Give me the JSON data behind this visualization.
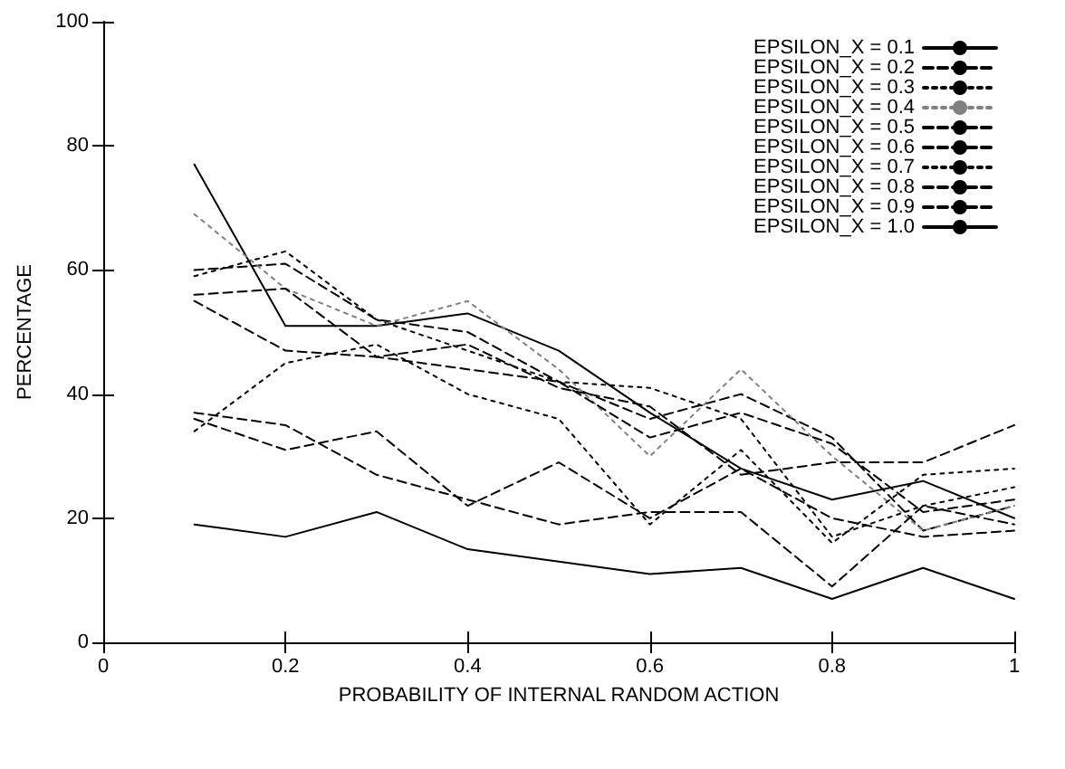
{
  "chart_data": {
    "type": "line",
    "xlabel": "PROBABILITY OF INTERNAL RANDOM ACTION",
    "ylabel": "PERCENTAGE",
    "x": [
      0.1,
      0.2,
      0.3,
      0.4,
      0.5,
      0.6,
      0.7,
      0.8,
      0.9,
      1.0
    ],
    "xlim": [
      0,
      1
    ],
    "xticks": [
      0,
      0.2,
      0.4,
      0.6,
      0.8,
      1
    ],
    "ylim": [
      0,
      100
    ],
    "yticks": [
      0,
      20,
      40,
      60,
      80,
      100
    ],
    "grid": false,
    "legend": "top right",
    "marker": "none",
    "series": [
      {
        "name": "EPSILON_X = 0.1",
        "color": "#000000",
        "line_style": "solid",
        "values": [
          77,
          51,
          51,
          53,
          47,
          37,
          28,
          23,
          26,
          20
        ]
      },
      {
        "name": "EPSILON_X = 0.2",
        "color": "#000000",
        "line_style": "dashed",
        "values": [
          60,
          61,
          52,
          50,
          42,
          36,
          40,
          33,
          18,
          22
        ]
      },
      {
        "name": "EPSILON_X = 0.3",
        "color": "#000000",
        "line_style": "dotted",
        "values": [
          59,
          63,
          52,
          47,
          42,
          41,
          36,
          17,
          22,
          25
        ]
      },
      {
        "name": "EPSILON_X = 0.4",
        "color": "#808080",
        "line_style": "dotted",
        "values": [
          69,
          57,
          51,
          55,
          44,
          30,
          44,
          30,
          18,
          22
        ]
      },
      {
        "name": "EPSILON_X = 0.5",
        "color": "#000000",
        "line_style": "dashed",
        "values": [
          56,
          57,
          46,
          44,
          42,
          33,
          37,
          32,
          21,
          23
        ]
      },
      {
        "name": "EPSILON_X = 0.6",
        "color": "#000000",
        "line_style": "dashed",
        "values": [
          55,
          47,
          46,
          48,
          41,
          38,
          27,
          29,
          29,
          35
        ]
      },
      {
        "name": "EPSILON_X = 0.7",
        "color": "#000000",
        "line_style": "dotted",
        "values": [
          34,
          45,
          48,
          40,
          36,
          19,
          31,
          16,
          27,
          28
        ]
      },
      {
        "name": "EPSILON_X = 0.8",
        "color": "#000000",
        "line_style": "dashed",
        "values": [
          37,
          35,
          27,
          23,
          19,
          21,
          21,
          9,
          22,
          19
        ]
      },
      {
        "name": "EPSILON_X = 0.9",
        "color": "#000000",
        "line_style": "dashed",
        "values": [
          36,
          31,
          34,
          22,
          29,
          20,
          28,
          20,
          17,
          18
        ]
      },
      {
        "name": "EPSILON_X = 1.0",
        "color": "#000000",
        "line_style": "solid",
        "values": [
          19,
          17,
          21,
          15,
          13,
          11,
          12,
          7,
          12,
          7
        ]
      }
    ]
  }
}
